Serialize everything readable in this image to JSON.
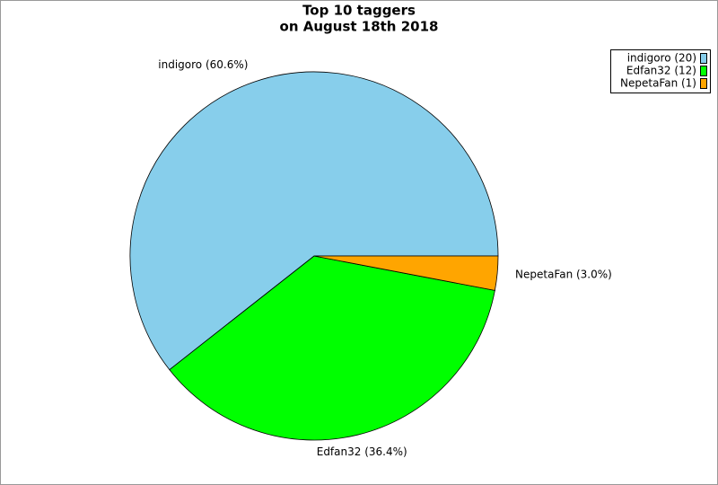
{
  "chart_data": {
    "type": "pie",
    "title": [
      "Top 10 taggers",
      "on August 18th 2018"
    ],
    "categories": [
      "indigoro (20)",
      "Edfan32 (12)",
      "NepetaFan (1)"
    ],
    "values": [
      60.6,
      36.4,
      3.0
    ],
    "value_labels": [
      "indigoro (60.6%)",
      "Edfan32 (36.4%)",
      "NepetaFan (3.0%)"
    ],
    "colors": [
      "#87ceeb",
      "#00ff00",
      "#ffa500"
    ],
    "legend": "top-right"
  }
}
